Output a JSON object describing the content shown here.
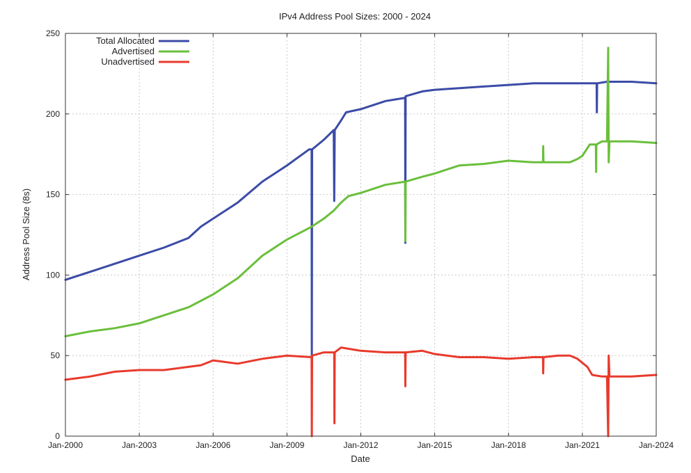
{
  "chart_data": {
    "type": "line",
    "title": "IPv4 Address Pool Sizes: 2000 - 2024",
    "xlabel": "Date",
    "ylabel": "Address Pool Size (8s)",
    "xlim": [
      2000,
      2024
    ],
    "ylim": [
      0,
      250
    ],
    "grid": true,
    "legend_position": "top-left",
    "x_ticks": [
      {
        "value": 2000,
        "label": "Jan-2000"
      },
      {
        "value": 2003,
        "label": "Jan-2003"
      },
      {
        "value": 2006,
        "label": "Jan-2006"
      },
      {
        "value": 2009,
        "label": "Jan-2009"
      },
      {
        "value": 2012,
        "label": "Jan-2012"
      },
      {
        "value": 2015,
        "label": "Jan-2015"
      },
      {
        "value": 2018,
        "label": "Jan-2018"
      },
      {
        "value": 2021,
        "label": "Jan-2021"
      },
      {
        "value": 2024,
        "label": "Jan-2024"
      }
    ],
    "y_ticks": [
      0,
      50,
      100,
      150,
      200,
      250
    ],
    "series": [
      {
        "name": "Total Allocated",
        "color": "#3b4ba6",
        "points": [
          [
            2000.0,
            97
          ],
          [
            2001.0,
            102
          ],
          [
            2002.0,
            107
          ],
          [
            2003.0,
            112
          ],
          [
            2004.0,
            117
          ],
          [
            2005.0,
            123
          ],
          [
            2005.5,
            130
          ],
          [
            2006.0,
            135
          ],
          [
            2007.0,
            145
          ],
          [
            2008.0,
            158
          ],
          [
            2009.0,
            168
          ],
          [
            2009.9,
            178
          ],
          [
            2010.0,
            178
          ],
          [
            2010.01,
            50
          ],
          [
            2010.02,
            178
          ],
          [
            2010.5,
            184
          ],
          [
            2010.9,
            190
          ],
          [
            2010.92,
            146
          ],
          [
            2010.94,
            190
          ],
          [
            2011.2,
            196
          ],
          [
            2011.4,
            201
          ],
          [
            2012.0,
            203
          ],
          [
            2013.0,
            208
          ],
          [
            2013.8,
            210
          ],
          [
            2013.81,
            120
          ],
          [
            2013.82,
            211
          ],
          [
            2014.5,
            214
          ],
          [
            2015.0,
            215
          ],
          [
            2016.0,
            216
          ],
          [
            2017.0,
            217
          ],
          [
            2018.0,
            218
          ],
          [
            2019.0,
            219
          ],
          [
            2020.0,
            219
          ],
          [
            2021.0,
            219
          ],
          [
            2021.58,
            219
          ],
          [
            2021.59,
            201
          ],
          [
            2021.6,
            219
          ],
          [
            2022.0,
            220
          ],
          [
            2023.0,
            220
          ],
          [
            2024.0,
            219
          ]
        ]
      },
      {
        "name": "Advertised",
        "color": "#6abf3b",
        "points": [
          [
            2000.0,
            62
          ],
          [
            2001.0,
            65
          ],
          [
            2002.0,
            67
          ],
          [
            2003.0,
            70
          ],
          [
            2004.0,
            75
          ],
          [
            2005.0,
            80
          ],
          [
            2005.5,
            84
          ],
          [
            2006.0,
            88
          ],
          [
            2007.0,
            98
          ],
          [
            2008.0,
            112
          ],
          [
            2009.0,
            122
          ],
          [
            2010.0,
            130
          ],
          [
            2010.5,
            135
          ],
          [
            2010.9,
            140
          ],
          [
            2011.2,
            145
          ],
          [
            2011.5,
            149
          ],
          [
            2012.0,
            151
          ],
          [
            2013.0,
            156
          ],
          [
            2013.8,
            158
          ],
          [
            2013.81,
            121
          ],
          [
            2013.82,
            158
          ],
          [
            2014.5,
            161
          ],
          [
            2015.0,
            163
          ],
          [
            2015.8,
            167
          ],
          [
            2016.0,
            168
          ],
          [
            2017.0,
            169
          ],
          [
            2018.0,
            171
          ],
          [
            2019.0,
            170
          ],
          [
            2019.4,
            170
          ],
          [
            2019.41,
            180
          ],
          [
            2019.42,
            170
          ],
          [
            2020.0,
            170
          ],
          [
            2020.5,
            170
          ],
          [
            2020.8,
            172
          ],
          [
            2021.0,
            174
          ],
          [
            2021.3,
            181
          ],
          [
            2021.55,
            181
          ],
          [
            2021.56,
            164
          ],
          [
            2021.57,
            181
          ],
          [
            2021.8,
            183
          ],
          [
            2022.0,
            183
          ],
          [
            2022.05,
            241
          ],
          [
            2022.07,
            170
          ],
          [
            2022.1,
            183
          ],
          [
            2023.0,
            183
          ],
          [
            2024.0,
            182
          ]
        ]
      },
      {
        "name": "Unadvertised",
        "color": "#e83a2c",
        "points": [
          [
            2000.0,
            35
          ],
          [
            2001.0,
            37
          ],
          [
            2002.0,
            40
          ],
          [
            2003.0,
            41
          ],
          [
            2004.0,
            41
          ],
          [
            2005.0,
            43
          ],
          [
            2005.5,
            44
          ],
          [
            2006.0,
            47
          ],
          [
            2007.0,
            45
          ],
          [
            2008.0,
            48
          ],
          [
            2009.0,
            50
          ],
          [
            2010.0,
            49
          ],
          [
            2010.01,
            0
          ],
          [
            2010.02,
            50
          ],
          [
            2010.5,
            52
          ],
          [
            2010.92,
            52
          ],
          [
            2010.93,
            8
          ],
          [
            2010.94,
            52
          ],
          [
            2011.2,
            55
          ],
          [
            2012.0,
            53
          ],
          [
            2013.0,
            52
          ],
          [
            2013.8,
            52
          ],
          [
            2013.81,
            31
          ],
          [
            2013.82,
            52
          ],
          [
            2014.5,
            53
          ],
          [
            2015.0,
            51
          ],
          [
            2016.0,
            49
          ],
          [
            2017.0,
            49
          ],
          [
            2018.0,
            48
          ],
          [
            2019.0,
            49
          ],
          [
            2019.4,
            49
          ],
          [
            2019.41,
            39
          ],
          [
            2019.42,
            49
          ],
          [
            2020.0,
            50
          ],
          [
            2020.5,
            50
          ],
          [
            2020.8,
            48
          ],
          [
            2021.2,
            43
          ],
          [
            2021.4,
            38
          ],
          [
            2021.8,
            37
          ],
          [
            2022.0,
            37
          ],
          [
            2022.05,
            0
          ],
          [
            2022.07,
            50
          ],
          [
            2022.1,
            37
          ],
          [
            2023.0,
            37
          ],
          [
            2024.0,
            38
          ]
        ]
      }
    ]
  }
}
